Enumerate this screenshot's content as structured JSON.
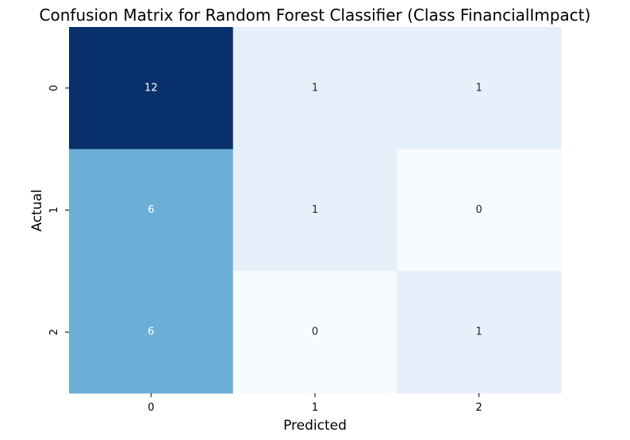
{
  "chart_data": {
    "type": "heatmap",
    "title": "Confusion Matrix for Random Forest Classifier (Class FinancialImpact)",
    "xlabel": "Predicted",
    "ylabel": "Actual",
    "x_categories": [
      "0",
      "1",
      "2"
    ],
    "y_categories": [
      "0",
      "1",
      "2"
    ],
    "values": [
      [
        12,
        1,
        1
      ],
      [
        6,
        1,
        0
      ],
      [
        6,
        0,
        1
      ]
    ],
    "colormap": "Blues",
    "annotations": true,
    "colorbar": false,
    "grid": false
  }
}
